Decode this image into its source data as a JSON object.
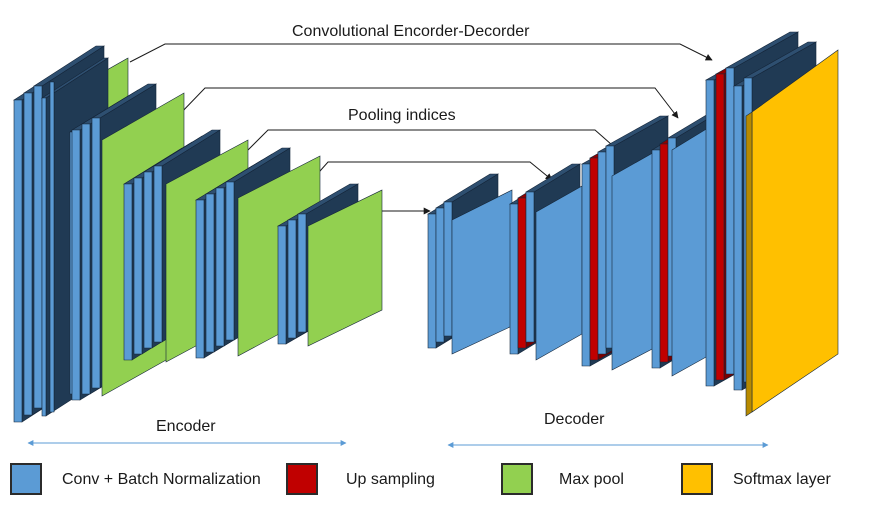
{
  "labels": {
    "title": "Convolutional Encorder-Decorder",
    "pooling": "Pooling indices",
    "encoder": "Encoder",
    "decoder": "Decoder"
  },
  "legend": [
    {
      "name": "conv-bn",
      "label": "Conv + Batch Normalization",
      "color": "#5b9bd5"
    },
    {
      "name": "upsampling",
      "label": "Up sampling",
      "color": "#c00000"
    },
    {
      "name": "maxpool",
      "label": "Max pool",
      "color": "#92d050"
    },
    {
      "name": "softmax",
      "label": "Softmax layer",
      "color": "#ffc000"
    }
  ],
  "colors": {
    "conv_front": "#5b9bd5",
    "conv_side": "#203a54",
    "conv_top": "#2e4f70",
    "pool_front": "#92d050",
    "pool_side": "#5f8f33",
    "pool_top": "#6f9f3f",
    "up": "#c00000",
    "softmax_front": "#ffc000",
    "softmax_side": "#b78a00",
    "softmax_top": "#c49300",
    "arrow": "#1a1a1a",
    "span_arrow": "#5b9bd5"
  }
}
